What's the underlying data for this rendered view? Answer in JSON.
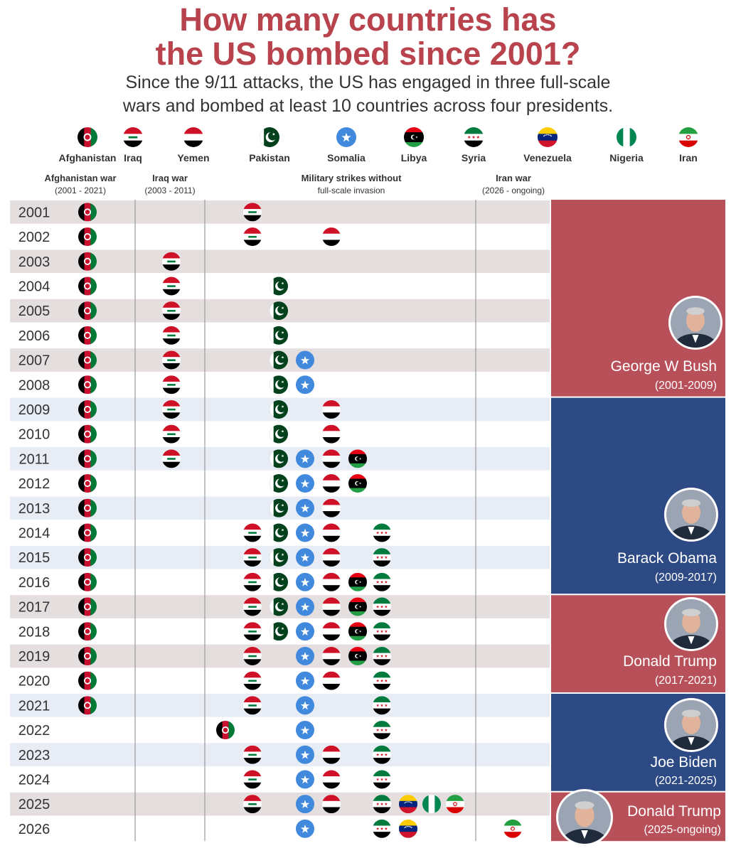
{
  "title_line1": "How many countries has",
  "title_line2": "the US bombed since 2001?",
  "subtitle_line1": "Since the 9/11 attacks, the US has engaged in three full-scale",
  "subtitle_line2": "wars and bombed at least 10 countries across four presidents.",
  "colors": {
    "republican": "#b8505a",
    "democrat": "#2d4a84",
    "row_gray": "#e5dede",
    "row_blue": "#e8ecf5",
    "title": "#b8434d"
  },
  "chart_data": {
    "type": "table",
    "countries": [
      {
        "key": "afghanistan",
        "name": "Afghanistan",
        "icon": "afghanistan-flag-icon"
      },
      {
        "key": "iraq",
        "name": "Iraq",
        "icon": "iraq-flag-icon"
      },
      {
        "key": "yemen",
        "name": "Yemen",
        "icon": "yemen-flag-icon"
      },
      {
        "key": "pakistan",
        "name": "Pakistan",
        "icon": "pakistan-flag-icon"
      },
      {
        "key": "somalia",
        "name": "Somalia",
        "icon": "somalia-flag-icon"
      },
      {
        "key": "libya",
        "name": "Libya",
        "icon": "libya-flag-icon"
      },
      {
        "key": "syria",
        "name": "Syria",
        "icon": "syria-flag-icon"
      },
      {
        "key": "venezuela",
        "name": "Venezuela",
        "icon": "venezuela-flag-icon"
      },
      {
        "key": "nigeria",
        "name": "Nigeria",
        "icon": "nigeria-flag-icon"
      },
      {
        "key": "iran",
        "name": "Iran",
        "icon": "iran-flag-icon"
      }
    ],
    "column_groups": [
      {
        "label": "Afghanistan war",
        "sub": "(2001 - 2021)"
      },
      {
        "label": "Iraq war",
        "sub": "(2003 - 2011)"
      },
      {
        "label": "Military strikes without",
        "sub": "full-scale invasion"
      },
      {
        "label": "Iran war",
        "sub": "(2026 - ongoing)"
      }
    ],
    "years": [
      {
        "year": "2001",
        "war": [
          "afghanistan"
        ],
        "strikes": [
          "iraq"
        ]
      },
      {
        "year": "2002",
        "war": [
          "afghanistan"
        ],
        "strikes": [
          "iraq",
          "yemen"
        ]
      },
      {
        "year": "2003",
        "war": [
          "afghanistan",
          "iraq"
        ],
        "strikes": []
      },
      {
        "year": "2004",
        "war": [
          "afghanistan",
          "iraq"
        ],
        "strikes": [
          "pakistan"
        ]
      },
      {
        "year": "2005",
        "war": [
          "afghanistan",
          "iraq"
        ],
        "strikes": [
          "pakistan"
        ]
      },
      {
        "year": "2006",
        "war": [
          "afghanistan",
          "iraq"
        ],
        "strikes": [
          "pakistan"
        ]
      },
      {
        "year": "2007",
        "war": [
          "afghanistan",
          "iraq"
        ],
        "strikes": [
          "pakistan",
          "somalia"
        ]
      },
      {
        "year": "2008",
        "war": [
          "afghanistan",
          "iraq"
        ],
        "strikes": [
          "pakistan",
          "somalia"
        ]
      },
      {
        "year": "2009",
        "war": [
          "afghanistan",
          "iraq"
        ],
        "strikes": [
          "pakistan",
          "yemen"
        ]
      },
      {
        "year": "2010",
        "war": [
          "afghanistan",
          "iraq"
        ],
        "strikes": [
          "pakistan",
          "yemen"
        ]
      },
      {
        "year": "2011",
        "war": [
          "afghanistan",
          "iraq"
        ],
        "strikes": [
          "pakistan",
          "somalia",
          "yemen",
          "libya"
        ]
      },
      {
        "year": "2012",
        "war": [
          "afghanistan"
        ],
        "strikes": [
          "pakistan",
          "somalia",
          "yemen",
          "libya"
        ]
      },
      {
        "year": "2013",
        "war": [
          "afghanistan"
        ],
        "strikes": [
          "pakistan",
          "somalia",
          "yemen"
        ]
      },
      {
        "year": "2014",
        "war": [
          "afghanistan"
        ],
        "strikes": [
          "iraq",
          "pakistan",
          "somalia",
          "yemen",
          "syria"
        ]
      },
      {
        "year": "2015",
        "war": [
          "afghanistan"
        ],
        "strikes": [
          "iraq",
          "pakistan",
          "somalia",
          "yemen",
          "syria"
        ]
      },
      {
        "year": "2016",
        "war": [
          "afghanistan"
        ],
        "strikes": [
          "iraq",
          "pakistan",
          "somalia",
          "yemen",
          "libya",
          "syria"
        ]
      },
      {
        "year": "2017",
        "war": [
          "afghanistan"
        ],
        "strikes": [
          "iraq",
          "pakistan",
          "somalia",
          "yemen",
          "libya",
          "syria"
        ]
      },
      {
        "year": "2018",
        "war": [
          "afghanistan"
        ],
        "strikes": [
          "iraq",
          "pakistan",
          "somalia",
          "yemen",
          "libya",
          "syria"
        ]
      },
      {
        "year": "2019",
        "war": [
          "afghanistan"
        ],
        "strikes": [
          "iraq",
          "somalia",
          "yemen",
          "libya",
          "syria"
        ]
      },
      {
        "year": "2020",
        "war": [
          "afghanistan"
        ],
        "strikes": [
          "iraq",
          "somalia",
          "yemen",
          "syria"
        ]
      },
      {
        "year": "2021",
        "war": [
          "afghanistan"
        ],
        "strikes": [
          "iraq",
          "somalia",
          "syria"
        ]
      },
      {
        "year": "2022",
        "war": [],
        "strikes": [
          "afghanistan",
          "somalia",
          "syria"
        ]
      },
      {
        "year": "2023",
        "war": [],
        "strikes": [
          "iraq",
          "somalia",
          "yemen",
          "syria"
        ]
      },
      {
        "year": "2024",
        "war": [],
        "strikes": [
          "iraq",
          "somalia",
          "yemen",
          "syria"
        ]
      },
      {
        "year": "2025",
        "war": [],
        "strikes": [
          "iraq",
          "somalia",
          "yemen",
          "syria",
          "venezuela",
          "nigeria",
          "iran"
        ]
      },
      {
        "year": "2026",
        "war": [
          "iran"
        ],
        "strikes": [
          "somalia",
          "syria",
          "venezuela"
        ]
      }
    ],
    "presidents": [
      {
        "name": "George W Bush",
        "term": "(2001-2009)",
        "start": "2001",
        "end": "2008",
        "party": "republican"
      },
      {
        "name": "Barack Obama",
        "term": "(2009-2017)",
        "start": "2009",
        "end": "2016",
        "party": "democrat"
      },
      {
        "name": "Donald Trump",
        "term": "(2017-2021)",
        "start": "2017",
        "end": "2020",
        "party": "republican"
      },
      {
        "name": "Joe Biden",
        "term": "(2021-2025)",
        "start": "2021",
        "end": "2024",
        "party": "democrat"
      },
      {
        "name": "Donald Trump",
        "term": "(2025-ongoing)",
        "start": "2025",
        "end": "2026",
        "party": "republican"
      }
    ]
  }
}
